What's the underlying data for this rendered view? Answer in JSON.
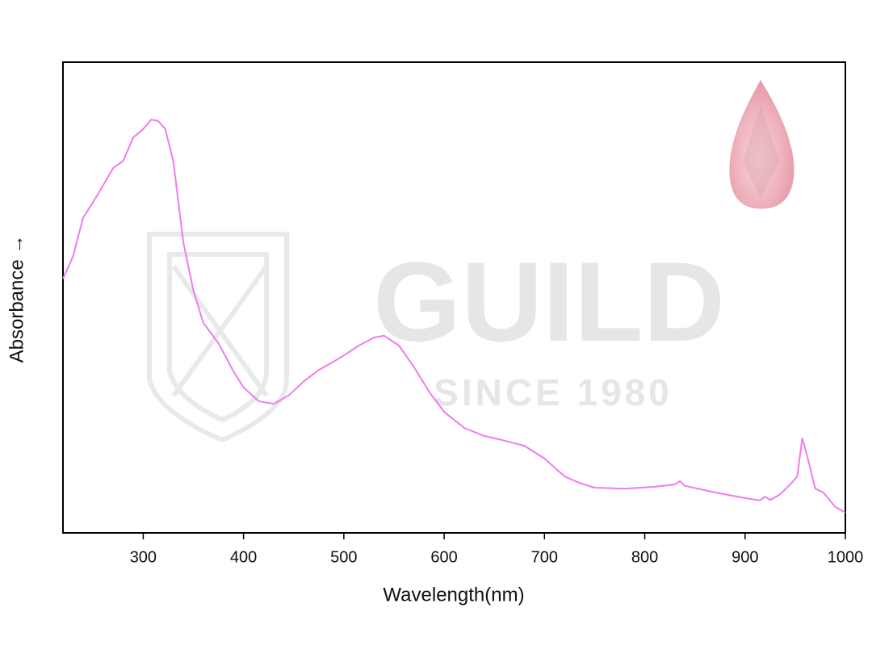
{
  "chart_data": {
    "type": "line",
    "x_label": "Wavelength(nm)",
    "y_label": "Absorbance →",
    "watermark": {
      "title": "GUILD",
      "subtitle": "SINCE 1980"
    },
    "xlim": [
      220,
      1000
    ],
    "ylim": [
      0,
      1
    ],
    "xticks": [
      300,
      400,
      500,
      600,
      700,
      800,
      900,
      1000
    ],
    "x": [
      220,
      230,
      240,
      255,
      270,
      280,
      290,
      300,
      308,
      315,
      322,
      330,
      340,
      350,
      360,
      375,
      390,
      400,
      415,
      430,
      445,
      460,
      475,
      490,
      500,
      515,
      530,
      540,
      555,
      570,
      585,
      600,
      620,
      640,
      660,
      680,
      700,
      720,
      735,
      750,
      780,
      810,
      830,
      835,
      840,
      870,
      900,
      915,
      920,
      925,
      935,
      945,
      952,
      957,
      962,
      970,
      978,
      990,
      1000
    ],
    "series": [
      {
        "name": "Absorbance",
        "color": "#ee7cee",
        "values": [
          0.54,
          0.587,
          0.669,
          0.72,
          0.775,
          0.79,
          0.84,
          0.858,
          0.878,
          0.875,
          0.858,
          0.789,
          0.617,
          0.515,
          0.446,
          0.403,
          0.343,
          0.309,
          0.28,
          0.274,
          0.292,
          0.322,
          0.346,
          0.364,
          0.377,
          0.398,
          0.415,
          0.419,
          0.398,
          0.352,
          0.3,
          0.257,
          0.223,
          0.206,
          0.196,
          0.185,
          0.158,
          0.12,
          0.106,
          0.096,
          0.094,
          0.098,
          0.103,
          0.11,
          0.1,
          0.086,
          0.074,
          0.069,
          0.077,
          0.07,
          0.082,
          0.103,
          0.12,
          0.201,
          0.163,
          0.094,
          0.086,
          0.055,
          0.043
        ]
      }
    ]
  }
}
